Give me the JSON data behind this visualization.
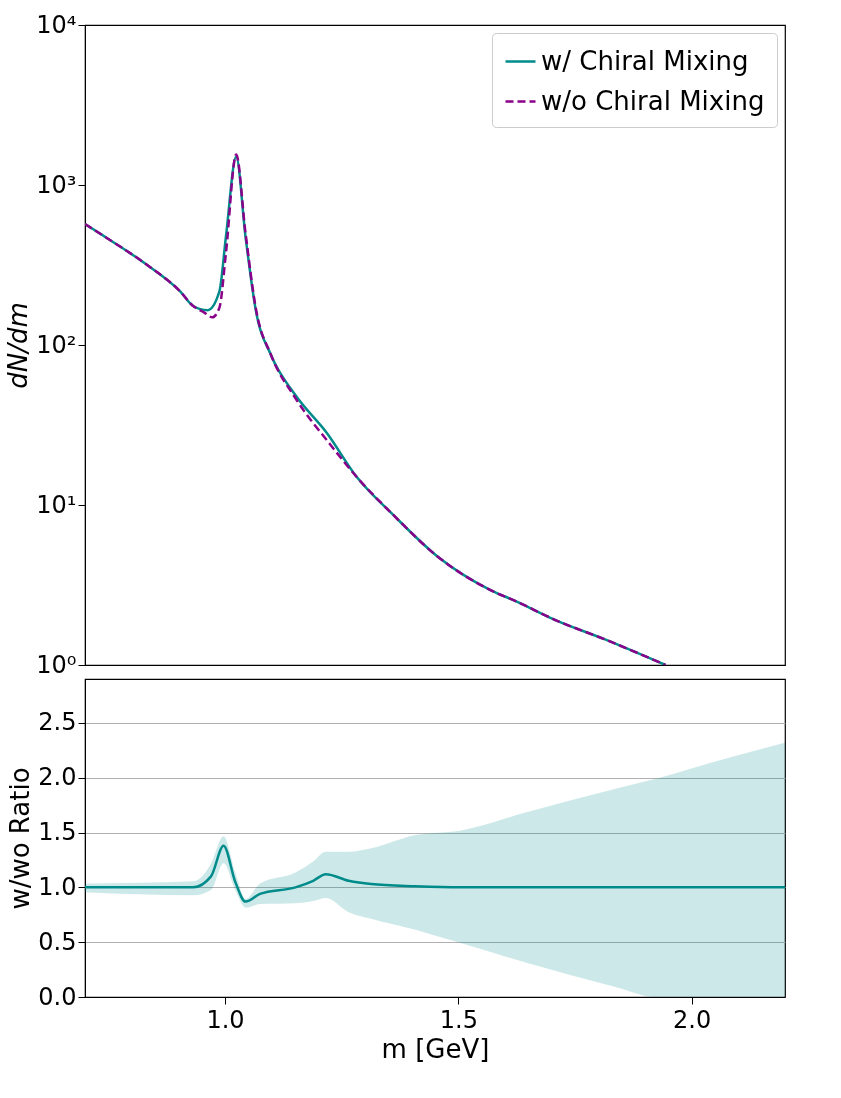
{
  "chart_data": [
    {
      "type": "line",
      "ylabel": "dN/dm",
      "xlim": [
        0.7,
        2.2
      ],
      "ylim": [
        1,
        10000
      ],
      "yticks": [
        {
          "value": 1,
          "label": "10⁰"
        },
        {
          "value": 10,
          "label": "10¹"
        },
        {
          "value": 100,
          "label": "10²"
        },
        {
          "value": 1000,
          "label": "10³"
        },
        {
          "value": 10000,
          "label": "10⁴"
        }
      ],
      "log": true,
      "tick_labels": "y",
      "legend": "top right",
      "grid": false,
      "series": [
        {
          "name": "w/ Chiral Mixing",
          "color": "#008b8b",
          "line_style": "solid",
          "x": [
            0.7,
            0.75,
            0.834,
            0.904,
            0.931,
            0.963,
            0.988,
            1.002,
            1.024,
            1.044,
            1.066,
            1.099,
            1.15,
            1.219,
            1.282,
            1.36,
            1.456,
            1.57,
            1.624,
            1.708,
            1.813,
            1.944
          ],
          "values": [
            570,
            460,
            315,
            216,
            176,
            165,
            216,
            475,
            1500,
            475,
            165,
            86,
            49,
            28,
            15,
            8.7,
            4.75,
            2.93,
            2.5,
            1.91,
            1.45,
            1.0
          ]
        },
        {
          "name": "w/o Chiral Mixing",
          "color": "#8b008b",
          "line_style": "dashed",
          "x": [
            0.7,
            0.75,
            0.834,
            0.904,
            0.931,
            0.955,
            0.973,
            0.988,
            1.002,
            1.024,
            1.044,
            1.066,
            1.099,
            1.15,
            1.225,
            1.282,
            1.36,
            1.456,
            1.57,
            1.624,
            1.708,
            1.813,
            1.944
          ],
          "values": [
            570,
            460,
            315,
            216,
            176,
            160,
            149,
            171,
            375,
            1550,
            500,
            170,
            86,
            47,
            24,
            15,
            8.7,
            4.75,
            2.93,
            2.5,
            1.91,
            1.45,
            1.0
          ]
        }
      ]
    },
    {
      "type": "line",
      "xlabel": "m [GeV]",
      "ylabel": "w/wo Ratio",
      "xlim": [
        0.7,
        2.2
      ],
      "xticks": [
        {
          "value": 1.0,
          "label": "1.0"
        },
        {
          "value": 1.5,
          "label": "1.5"
        },
        {
          "value": 2.0,
          "label": "2.0"
        }
      ],
      "ylim": [
        0,
        2.9
      ],
      "yticks": [
        {
          "value": 0,
          "label": "0.0"
        },
        {
          "value": 0.5,
          "label": "0.5"
        },
        {
          "value": 1.0,
          "label": "1.0"
        },
        {
          "value": 1.5,
          "label": "1.5"
        },
        {
          "value": 2.0,
          "label": "2.0"
        },
        {
          "value": 2.5,
          "label": "2.5"
        }
      ],
      "grid": "y",
      "series": [
        {
          "color": "#008b8b",
          "line_style": "solid",
          "x": [
            0.7,
            0.932,
            0.97,
            0.997,
            1.022,
            1.044,
            1.075,
            1.151,
            1.189,
            1.216,
            1.265,
            1.313,
            1.408,
            1.503,
            1.646,
            1.837,
            1.923,
            2.027,
            2.2
          ],
          "values": [
            1.0,
            1.0,
            1.1,
            1.38,
            1.05,
            0.87,
            0.94,
            1.0,
            1.06,
            1.12,
            1.06,
            1.03,
            1.01,
            1.0,
            1.0,
            1.0,
            1.0,
            1.0,
            1.0
          ],
          "upper": [
            1.035,
            1.055,
            1.216,
            1.465,
            1.136,
            0.895,
            1.035,
            1.136,
            1.236,
            1.324,
            1.324,
            1.356,
            1.477,
            1.517,
            1.685,
            1.898,
            1.99,
            2.119,
            2.319
          ],
          "lower": [
            0.955,
            0.927,
            0.975,
            1.22,
            0.975,
            0.815,
            0.847,
            0.855,
            0.875,
            0.903,
            0.774,
            0.714,
            0.614,
            0.494,
            0.313,
            0.092,
            0,
            0,
            0
          ]
        }
      ]
    }
  ]
}
